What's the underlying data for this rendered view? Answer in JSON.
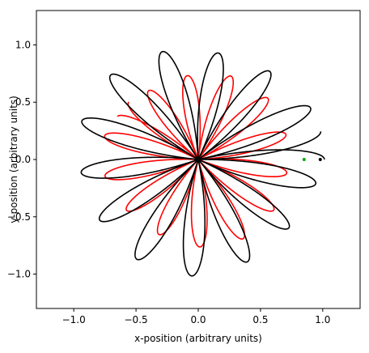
{
  "chart_data": {
    "type": "line",
    "title": "",
    "xlabel": "x-position (arbitrary units)",
    "ylabel": "y-position (arbitrary units)",
    "xlim": [
      -1.3,
      1.3
    ],
    "ylim": [
      -1.3,
      1.3
    ],
    "xticks": [
      -1.0,
      -0.5,
      0.0,
      0.5,
      1.0
    ],
    "yticks": [
      -1.0,
      -0.5,
      0.0,
      0.5,
      1.0
    ],
    "xtick_labels": [
      "−1.0",
      "−0.5",
      "0.0",
      "0.5",
      "1.0"
    ],
    "ytick_labels": [
      "−1.0",
      "−0.5",
      "0.0",
      "0.5",
      "1.0"
    ],
    "grid": false,
    "legend": false,
    "series": [
      {
        "color": "#ff0000",
        "curve": "rose",
        "petals": 7,
        "outer_radius": 0.75,
        "inner_radius": 0.0,
        "orientation_deg": 138,
        "traces": 2,
        "precession_deg": 6
      },
      {
        "color": "#000000",
        "curve": "rose",
        "petals": 7,
        "outer_radius": 0.98,
        "inner_radius": 0.0,
        "orientation_deg": 0,
        "traces": 2,
        "precession_deg": 7
      }
    ],
    "markers": [
      {
        "color": "#000000",
        "x": 0.98,
        "y": 0.0
      },
      {
        "color": "#00aa00",
        "x": 0.85,
        "y": 0.0
      }
    ]
  }
}
